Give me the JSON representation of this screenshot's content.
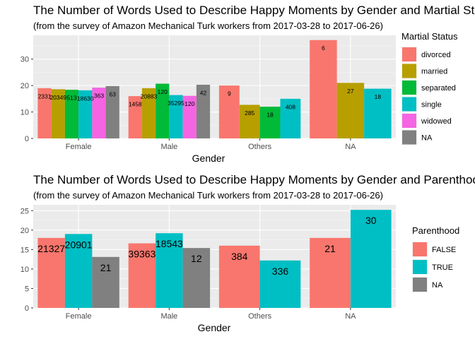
{
  "chart_data": [
    {
      "type": "bar",
      "title": "The Number of Words Used to Describe Happy Moments by Gender and Martial Status",
      "subtitle": "(from the survey of Amazon Mechanical Turk workers from 2017-03-28 to 2017-06-26)",
      "xlabel": "Gender",
      "ylabel": "",
      "categories": [
        "Female",
        "Male",
        "Others",
        "NA"
      ],
      "ylim": [
        0,
        39
      ],
      "yticks": [
        0,
        10,
        20,
        30
      ],
      "legend_title": "Martial Status",
      "legend_position": "right",
      "grid": true,
      "series": [
        {
          "name": "divorced",
          "color": "#F8766D",
          "values": [
            19.0,
            16.0,
            20.0,
            37.2
          ],
          "labels": [
            "2331",
            "1458",
            "9",
            "6"
          ]
        },
        {
          "name": "married",
          "color": "#B79F00",
          "values": [
            18.6,
            19.0,
            12.7,
            21.0
          ],
          "labels": [
            "20349",
            "20883",
            "285",
            "27"
          ]
        },
        {
          "name": "separated",
          "color": "#00BA38",
          "values": [
            18.4,
            20.7,
            12.0,
            null
          ],
          "labels": [
            "513",
            "120",
            "18",
            ""
          ]
        },
        {
          "name": "single",
          "color": "#00BFC4",
          "values": [
            18.2,
            16.4,
            15.0,
            18.8
          ],
          "labels": [
            "18630",
            "35295",
            "408",
            "18"
          ]
        },
        {
          "name": "widowed",
          "color": "#F564E3",
          "values": [
            19.2,
            16.1,
            null,
            null
          ],
          "labels": [
            "363",
            "120",
            "",
            ""
          ]
        },
        {
          "name": "NA",
          "color": "#808080",
          "values": [
            19.8,
            20.3,
            null,
            null
          ],
          "labels": [
            "63",
            "42",
            "",
            ""
          ]
        }
      ]
    },
    {
      "type": "bar",
      "title": "The Number of Words Used to Describe Happy Moments by Gender and Parenthood",
      "subtitle": "(from the survey of Amazon Mechanical Turk workers from 2017-03-28 to 2017-06-26)",
      "xlabel": "Gender",
      "ylabel": "",
      "categories": [
        "Female",
        "Male",
        "Others",
        "NA"
      ],
      "ylim": [
        0,
        26.5
      ],
      "yticks": [
        0,
        5,
        10,
        15,
        20,
        25
      ],
      "legend_title": "Parenthood",
      "legend_position": "right",
      "grid": true,
      "series": [
        {
          "name": "FALSE",
          "color": "#F8766D",
          "values": [
            18.0,
            16.6,
            16.0,
            18.0
          ],
          "labels": [
            "21327",
            "39363",
            "384",
            "21"
          ]
        },
        {
          "name": "TRUE",
          "color": "#00BFC4",
          "values": [
            19.0,
            19.2,
            12.2,
            25.2
          ],
          "labels": [
            "20901",
            "18543",
            "336",
            "30"
          ]
        },
        {
          "name": "NA",
          "color": "#808080",
          "values": [
            13.1,
            15.4,
            null,
            null
          ],
          "labels": [
            "21",
            "12",
            "",
            ""
          ]
        }
      ]
    }
  ]
}
